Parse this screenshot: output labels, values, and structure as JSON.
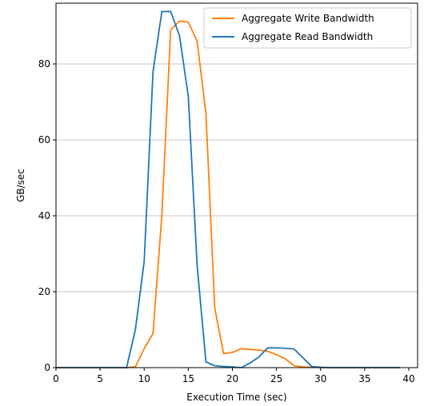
{
  "chart_data": {
    "type": "line",
    "title": "",
    "xlabel": "Execution Time (sec)",
    "ylabel": "GB/sec",
    "xlim": [
      0,
      41
    ],
    "ylim": [
      0,
      96
    ],
    "xticks": [
      0,
      5,
      10,
      15,
      20,
      25,
      30,
      35,
      40
    ],
    "yticks": [
      0,
      20,
      40,
      60,
      80
    ],
    "grid": "horizontal",
    "legend_position": "top-right",
    "series": [
      {
        "name": "Aggregate Write Bandwidth",
        "color": "#ff7f0e",
        "x": [
          0,
          1,
          2,
          3,
          4,
          5,
          6,
          7,
          8,
          9,
          10,
          11,
          12,
          13,
          14,
          15,
          16,
          17,
          18,
          19,
          20,
          21,
          22,
          23,
          24,
          25,
          26,
          27,
          28,
          29,
          30,
          31,
          32,
          33,
          34,
          35,
          36,
          37,
          38,
          39
        ],
        "y": [
          0,
          0,
          0,
          0,
          0,
          0,
          0,
          0,
          0,
          0.2,
          5,
          9,
          40,
          89,
          91.3,
          91,
          86,
          67,
          15.7,
          3.7,
          4,
          5,
          4.8,
          4.6,
          4.3,
          3.4,
          2.3,
          0.5,
          0.2,
          0.1,
          0,
          0,
          0,
          0,
          0,
          0,
          0,
          0,
          0,
          0
        ]
      },
      {
        "name": "Aggregate Read Bandwidth",
        "color": "#1f77b4",
        "x": [
          0,
          1,
          2,
          3,
          4,
          5,
          6,
          7,
          8,
          9,
          10,
          11,
          12,
          13,
          14,
          15,
          16,
          17,
          18,
          19,
          20,
          21,
          22,
          23,
          24,
          25,
          26,
          27,
          28,
          29,
          30,
          31,
          32,
          33,
          34,
          35,
          36,
          37,
          38,
          39
        ],
        "y": [
          0,
          0,
          0,
          0,
          0,
          0,
          0,
          0,
          0,
          10,
          28,
          78,
          93.8,
          93.8,
          87.5,
          71.5,
          27,
          1.5,
          0.5,
          0.3,
          0.2,
          0,
          1.2,
          2.8,
          5.2,
          5.2,
          5.1,
          4.9,
          2.6,
          0.3,
          0.1,
          0,
          0,
          0,
          0,
          0,
          0,
          0,
          0,
          0
        ]
      }
    ]
  }
}
